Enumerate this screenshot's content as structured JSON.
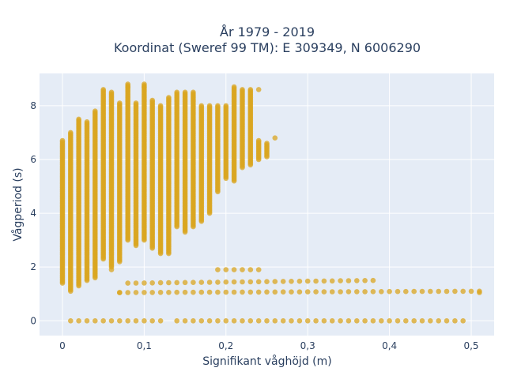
{
  "chart_data": {
    "type": "scatter",
    "title_line1": "År 1979 - 2019",
    "title_line2": "Koordinat (Sweref 99 TM): E 309349, N 6006290",
    "xlabel": "Signifikant våghöjd (m)",
    "ylabel": "Vågperiod (s)",
    "xlim": [
      -0.028,
      0.528
    ],
    "ylim": [
      -0.55,
      9.2
    ],
    "xticks": [
      {
        "value": 0,
        "label": "0"
      },
      {
        "value": 0.1,
        "label": "0,1"
      },
      {
        "value": 0.2,
        "label": "0,2"
      },
      {
        "value": 0.3,
        "label": "0,3"
      },
      {
        "value": 0.4,
        "label": "0,4"
      },
      {
        "value": 0.5,
        "label": "0,5"
      }
    ],
    "yticks": [
      {
        "value": 0,
        "label": "0"
      },
      {
        "value": 2,
        "label": "2"
      },
      {
        "value": 4,
        "label": "4"
      },
      {
        "value": 6,
        "label": "6"
      },
      {
        "value": 8,
        "label": "8"
      }
    ],
    "grid": true,
    "colors": {
      "marker": "#DAA520",
      "plot_bg": "#E5ECF6",
      "grid": "#ffffff"
    },
    "x_step": 0.01,
    "segments": [
      {
        "x_from": 0.0,
        "x_to": 0.0,
        "y_from": 1.4,
        "y_to": 6.7
      },
      {
        "x_from": 0.01,
        "x_to": 0.01,
        "y_from": 1.1,
        "y_to": 7.0
      },
      {
        "x_from": 0.02,
        "x_to": 0.02,
        "y_from": 1.3,
        "y_to": 7.5
      },
      {
        "x_from": 0.03,
        "x_to": 0.03,
        "y_from": 1.5,
        "y_to": 7.4
      },
      {
        "x_from": 0.04,
        "x_to": 0.04,
        "y_from": 1.6,
        "y_to": 7.8
      },
      {
        "x_from": 0.05,
        "x_to": 0.05,
        "y_from": 2.3,
        "y_to": 8.6
      },
      {
        "x_from": 0.06,
        "x_to": 0.06,
        "y_from": 2.0,
        "y_to": 8.5
      },
      {
        "x_from": 0.07,
        "x_to": 0.07,
        "y_from": 2.2,
        "y_to": 8.1
      },
      {
        "x_from": 0.08,
        "x_to": 0.08,
        "y_from": 3.0,
        "y_to": 8.8
      },
      {
        "x_from": 0.09,
        "x_to": 0.09,
        "y_from": 2.8,
        "y_to": 8.1
      },
      {
        "x_from": 0.1,
        "x_to": 0.1,
        "y_from": 3.0,
        "y_to": 8.8
      },
      {
        "x_from": 0.11,
        "x_to": 0.11,
        "y_from": 2.7,
        "y_to": 8.2
      },
      {
        "x_from": 0.12,
        "x_to": 0.12,
        "y_from": 2.5,
        "y_to": 8.0
      },
      {
        "x_from": 0.13,
        "x_to": 0.13,
        "y_from": 2.5,
        "y_to": 8.3
      },
      {
        "x_from": 0.14,
        "x_to": 0.14,
        "y_from": 3.5,
        "y_to": 8.5
      },
      {
        "x_from": 0.15,
        "x_to": 0.15,
        "y_from": 3.3,
        "y_to": 8.5
      },
      {
        "x_from": 0.16,
        "x_to": 0.16,
        "y_from": 3.5,
        "y_to": 8.5
      },
      {
        "x_from": 0.17,
        "x_to": 0.17,
        "y_from": 3.7,
        "y_to": 8.0
      },
      {
        "x_from": 0.18,
        "x_to": 0.18,
        "y_from": 4.0,
        "y_to": 8.0
      },
      {
        "x_from": 0.19,
        "x_to": 0.19,
        "y_from": 4.8,
        "y_to": 8.0
      },
      {
        "x_from": 0.2,
        "x_to": 0.2,
        "y_from": 5.3,
        "y_to": 8.0
      },
      {
        "x_from": 0.21,
        "x_to": 0.21,
        "y_from": 5.2,
        "y_to": 8.7
      },
      {
        "x_from": 0.22,
        "x_to": 0.22,
        "y_from": 5.7,
        "y_to": 8.6
      },
      {
        "x_from": 0.23,
        "x_to": 0.23,
        "y_from": 5.8,
        "y_to": 8.6
      },
      {
        "x_from": 0.24,
        "x_to": 0.24,
        "y_from": 6.0,
        "y_to": 6.7
      },
      {
        "x_from": 0.25,
        "x_to": 0.25,
        "y_from": 6.1,
        "y_to": 6.6
      },
      {
        "x_from": 0.08,
        "x_to": 0.38,
        "y_from": 1.4,
        "y_to": 1.5
      },
      {
        "x_from": 0.07,
        "x_to": 0.51,
        "y_from": 1.05,
        "y_to": 1.1
      },
      {
        "x_from": 0.19,
        "x_to": 0.24,
        "y_from": 1.9,
        "y_to": 1.9
      },
      {
        "x_from": 0.01,
        "x_to": 0.12,
        "y_from": 0.0,
        "y_to": 0.0
      },
      {
        "x_from": 0.14,
        "x_to": 0.49,
        "y_from": 0.0,
        "y_to": 0.0
      }
    ],
    "isolated_points": [
      {
        "x": 0.06,
        "y": 1.9
      },
      {
        "x": 0.07,
        "y": 1.05
      },
      {
        "x": 0.26,
        "y": 6.8
      },
      {
        "x": 0.24,
        "y": 8.6
      },
      {
        "x": 0.1,
        "y": 8.7
      },
      {
        "x": 0.08,
        "y": 8.7
      },
      {
        "x": 0.51,
        "y": 1.05
      }
    ]
  }
}
